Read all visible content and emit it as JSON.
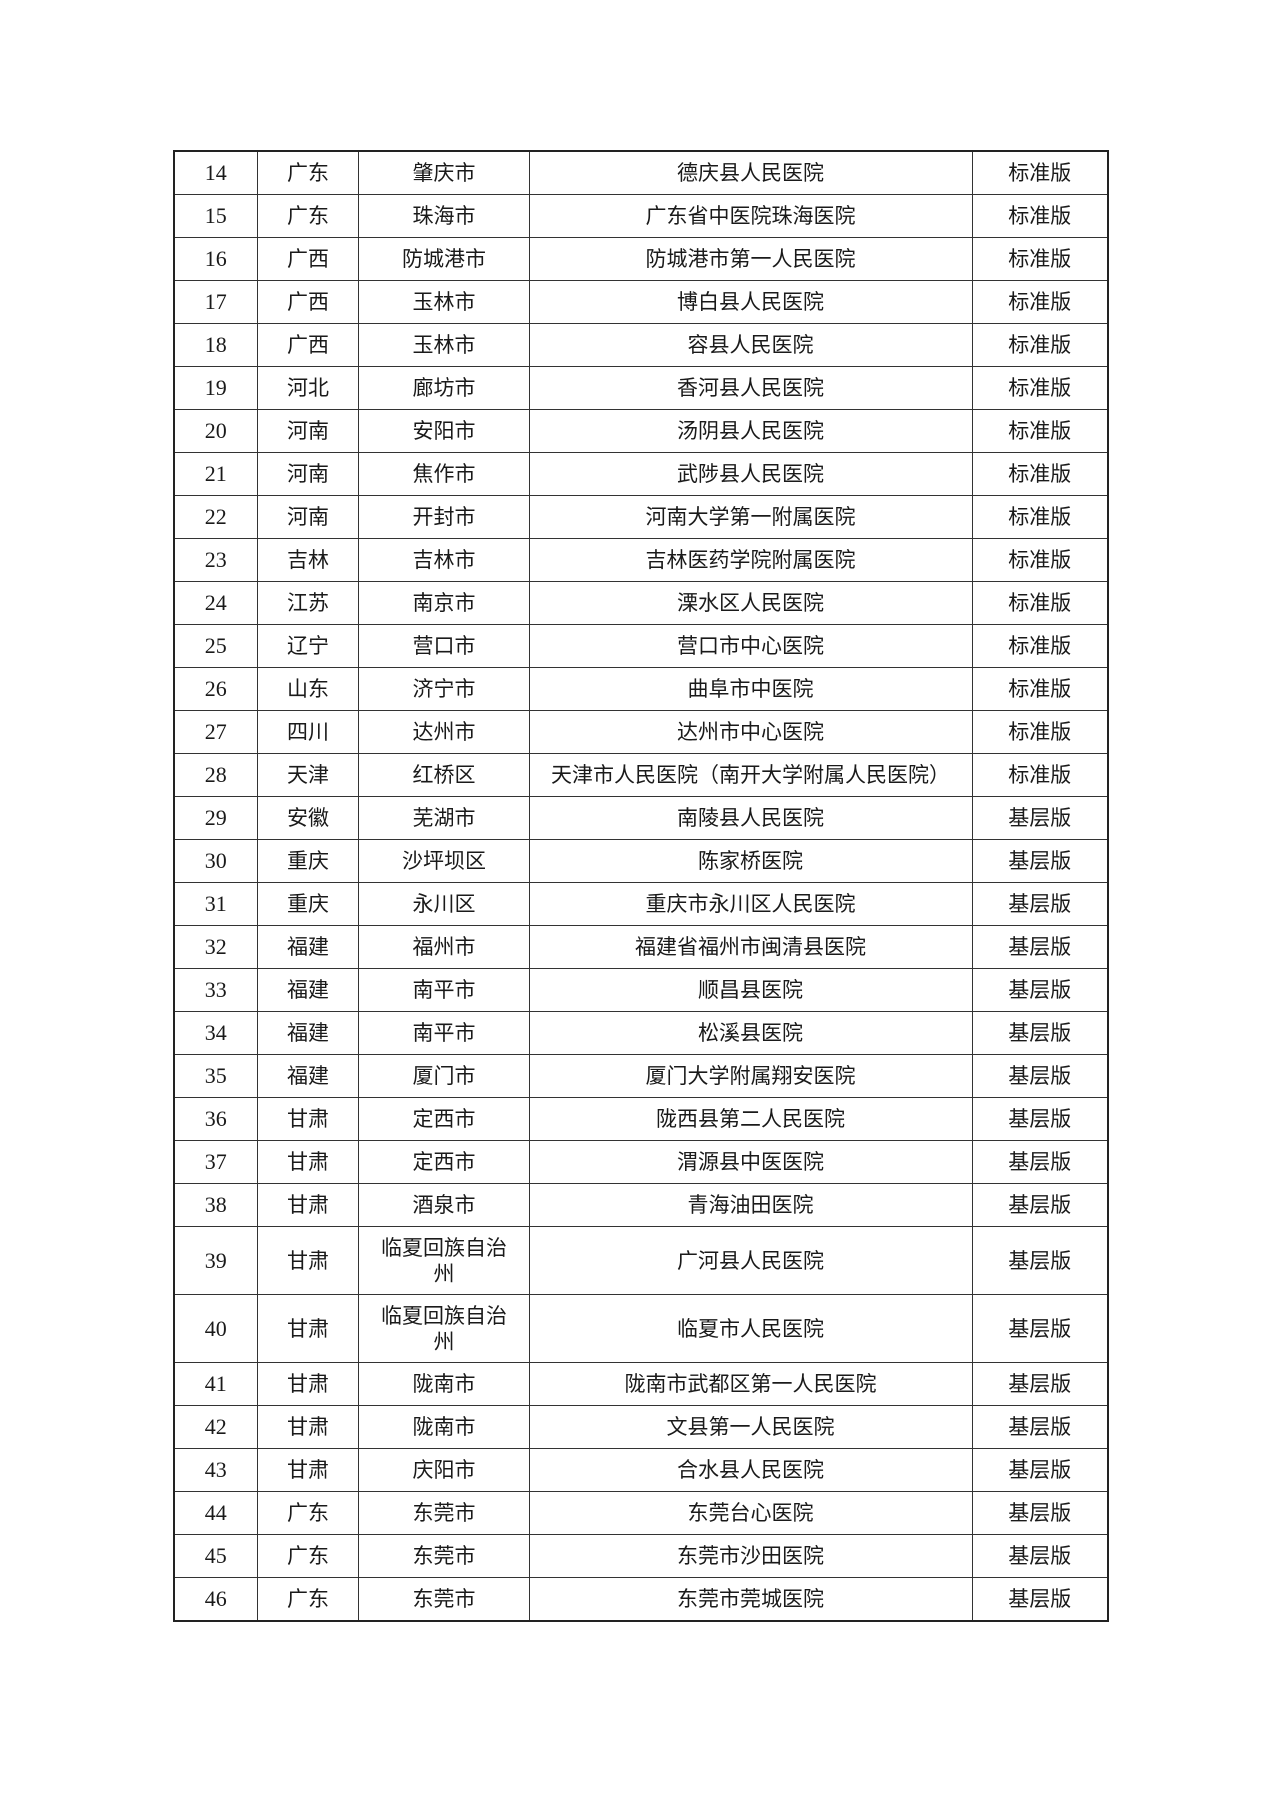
{
  "table": {
    "rows": [
      {
        "no": "14",
        "province": "广东",
        "city": "肇庆市",
        "hospital": "德庆县人民医院",
        "edition": "标准版"
      },
      {
        "no": "15",
        "province": "广东",
        "city": "珠海市",
        "hospital": "广东省中医院珠海医院",
        "edition": "标准版"
      },
      {
        "no": "16",
        "province": "广西",
        "city": "防城港市",
        "hospital": "防城港市第一人民医院",
        "edition": "标准版"
      },
      {
        "no": "17",
        "province": "广西",
        "city": "玉林市",
        "hospital": "博白县人民医院",
        "edition": "标准版"
      },
      {
        "no": "18",
        "province": "广西",
        "city": "玉林市",
        "hospital": "容县人民医院",
        "edition": "标准版"
      },
      {
        "no": "19",
        "province": "河北",
        "city": "廊坊市",
        "hospital": "香河县人民医院",
        "edition": "标准版"
      },
      {
        "no": "20",
        "province": "河南",
        "city": "安阳市",
        "hospital": "汤阴县人民医院",
        "edition": "标准版"
      },
      {
        "no": "21",
        "province": "河南",
        "city": "焦作市",
        "hospital": "武陟县人民医院",
        "edition": "标准版"
      },
      {
        "no": "22",
        "province": "河南",
        "city": "开封市",
        "hospital": "河南大学第一附属医院",
        "edition": "标准版"
      },
      {
        "no": "23",
        "province": "吉林",
        "city": "吉林市",
        "hospital": "吉林医药学院附属医院",
        "edition": "标准版"
      },
      {
        "no": "24",
        "province": "江苏",
        "city": "南京市",
        "hospital": "溧水区人民医院",
        "edition": "标准版"
      },
      {
        "no": "25",
        "province": "辽宁",
        "city": "营口市",
        "hospital": "营口市中心医院",
        "edition": "标准版"
      },
      {
        "no": "26",
        "province": "山东",
        "city": "济宁市",
        "hospital": "曲阜市中医院",
        "edition": "标准版"
      },
      {
        "no": "27",
        "province": "四川",
        "city": "达州市",
        "hospital": "达州市中心医院",
        "edition": "标准版"
      },
      {
        "no": "28",
        "province": "天津",
        "city": "红桥区",
        "hospital": "天津市人民医院（南开大学附属人民医院）",
        "edition": "标准版"
      },
      {
        "no": "29",
        "province": "安徽",
        "city": "芜湖市",
        "hospital": "南陵县人民医院",
        "edition": "基层版"
      },
      {
        "no": "30",
        "province": "重庆",
        "city": "沙坪坝区",
        "hospital": "陈家桥医院",
        "edition": "基层版"
      },
      {
        "no": "31",
        "province": "重庆",
        "city": "永川区",
        "hospital": "重庆市永川区人民医院",
        "edition": "基层版"
      },
      {
        "no": "32",
        "province": "福建",
        "city": "福州市",
        "hospital": "福建省福州市闽清县医院",
        "edition": "基层版"
      },
      {
        "no": "33",
        "province": "福建",
        "city": "南平市",
        "hospital": "顺昌县医院",
        "edition": "基层版"
      },
      {
        "no": "34",
        "province": "福建",
        "city": "南平市",
        "hospital": "松溪县医院",
        "edition": "基层版"
      },
      {
        "no": "35",
        "province": "福建",
        "city": "厦门市",
        "hospital": "厦门大学附属翔安医院",
        "edition": "基层版"
      },
      {
        "no": "36",
        "province": "甘肃",
        "city": "定西市",
        "hospital": "陇西县第二人民医院",
        "edition": "基层版"
      },
      {
        "no": "37",
        "province": "甘肃",
        "city": "定西市",
        "hospital": "渭源县中医医院",
        "edition": "基层版"
      },
      {
        "no": "38",
        "province": "甘肃",
        "city": "酒泉市",
        "hospital": "青海油田医院",
        "edition": "基层版"
      },
      {
        "no": "39",
        "province": "甘肃",
        "city": "临夏回族自治州",
        "hospital": "广河县人民医院",
        "edition": "基层版"
      },
      {
        "no": "40",
        "province": "甘肃",
        "city": "临夏回族自治州",
        "hospital": "临夏市人民医院",
        "edition": "基层版"
      },
      {
        "no": "41",
        "province": "甘肃",
        "city": "陇南市",
        "hospital": "陇南市武都区第一人民医院",
        "edition": "基层版"
      },
      {
        "no": "42",
        "province": "甘肃",
        "city": "陇南市",
        "hospital": "文县第一人民医院",
        "edition": "基层版"
      },
      {
        "no": "43",
        "province": "甘肃",
        "city": "庆阳市",
        "hospital": "合水县人民医院",
        "edition": "基层版"
      },
      {
        "no": "44",
        "province": "广东",
        "city": "东莞市",
        "hospital": "东莞台心医院",
        "edition": "基层版"
      },
      {
        "no": "45",
        "province": "广东",
        "city": "东莞市",
        "hospital": "东莞市沙田医院",
        "edition": "基层版"
      },
      {
        "no": "46",
        "province": "广东",
        "city": "东莞市",
        "hospital": "东莞市莞城医院",
        "edition": "基层版"
      }
    ]
  }
}
